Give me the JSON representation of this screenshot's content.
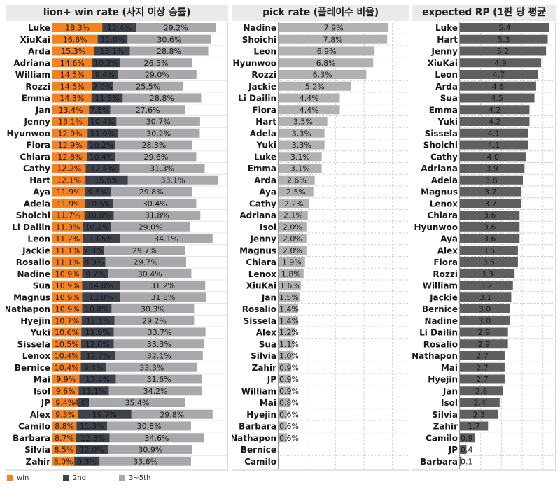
{
  "chart_data": [
    {
      "type": "bar",
      "orientation": "horizontal",
      "stacked": true,
      "title": "lion+ win rate (사지 이상 승률)",
      "categories": [
        "Luke",
        "XiuKai",
        "Arda",
        "Adriana",
        "William",
        "Rozzi",
        "Emma",
        "Jan",
        "Jenny",
        "Hyunwoo",
        "Fiora",
        "Chiara",
        "Cathy",
        "Hart",
        "Aya",
        "Adela",
        "Shoichi",
        "Li Dailin",
        "Leon",
        "Jackie",
        "Rosalio",
        "Nadine",
        "Sua",
        "Magnus",
        "Nathapon",
        "Hyejin",
        "Yuki",
        "Sissela",
        "Lenox",
        "Bernice",
        "Mai",
        "Isol",
        "JP",
        "Alex",
        "Camilo",
        "Barbara",
        "Silvia",
        "Zahir"
      ],
      "series": [
        {
          "name": "win",
          "color": "#f5821f",
          "values": [
            18.3,
            16.6,
            15.3,
            14.6,
            14.5,
            14.5,
            14.3,
            13.4,
            13.1,
            12.9,
            12.9,
            12.8,
            12.2,
            12.1,
            11.9,
            11.9,
            11.7,
            11.3,
            11.2,
            11.1,
            11.1,
            10.9,
            10.9,
            10.9,
            10.9,
            10.7,
            10.6,
            10.5,
            10.4,
            10.4,
            9.9,
            9.6,
            9.4,
            9.3,
            8.8,
            8.7,
            8.5,
            8.0
          ]
        },
        {
          "name": "2nd",
          "color": "#3d414b",
          "values": [
            12.4,
            11.0,
            13.1,
            10.2,
            9.4,
            7.9,
            11.5,
            7.8,
            10.4,
            11.0,
            10.2,
            10.4,
            12.4,
            15.6,
            9.5,
            10.5,
            10.8,
            10.2,
            13.5,
            7.8,
            8.3,
            9.7,
            14.0,
            13.8,
            10.8,
            12.1,
            11.9,
            12.0,
            12.7,
            9.4,
            13.4,
            11.1,
            4.0,
            19.7,
            11.3,
            12.3,
            12.0,
            9.3
          ]
        },
        {
          "name": "3~5th",
          "color": "#a6a8ab",
          "values": [
            29.2,
            30.6,
            28.8,
            26.5,
            29.0,
            25.5,
            28.8,
            27.6,
            30.7,
            30.2,
            28.3,
            29.6,
            31.3,
            33.1,
            29.8,
            30.4,
            31.8,
            29.0,
            34.1,
            29.7,
            29.7,
            30.4,
            31.2,
            31.8,
            30.3,
            29.2,
            33.7,
            33.3,
            32.1,
            33.3,
            31.6,
            34.2,
            35.4,
            29.8,
            30.8,
            34.6,
            30.9,
            33.6
          ]
        }
      ],
      "value_suffix": "%",
      "xlim": [
        0,
        64
      ],
      "grid": false,
      "legend": "bottom-left"
    },
    {
      "type": "bar",
      "orientation": "horizontal",
      "title": "pick rate (플레이수 비율)",
      "color": "#b1b1b1",
      "categories": [
        "Nadine",
        "Shoichi",
        "Leon",
        "Hyunwoo",
        "Rozzi",
        "Jackie",
        "Li Dailin",
        "Fiora",
        "Hart",
        "Adela",
        "Yuki",
        "Luke",
        "Emma",
        "Arda",
        "Aya",
        "Cathy",
        "Adriana",
        "Isol",
        "Jenny",
        "Magnus",
        "Chiara",
        "Lenox",
        "XiuKai",
        "Jan",
        "Rosalio",
        "Sissela",
        "Alex",
        "Sua",
        "Silvia",
        "Zahir",
        "JP",
        "William",
        "Mai",
        "Hyejin",
        "Barbara",
        "Nathapon",
        "Bernice",
        "Camilo"
      ],
      "values": [
        7.9,
        7.8,
        6.9,
        6.8,
        6.3,
        5.2,
        4.4,
        4.4,
        3.5,
        3.3,
        3.3,
        3.1,
        3.1,
        2.6,
        2.5,
        2.2,
        2.1,
        2.0,
        2.0,
        2.0,
        1.9,
        1.8,
        1.6,
        1.5,
        1.4,
        1.4,
        1.2,
        1.1,
        1.0,
        0.9,
        0.9,
        0.9,
        0.8,
        0.6,
        0.6,
        0.6,
        null,
        null
      ],
      "value_suffix": "%",
      "xlim": [
        0,
        9.3
      ],
      "grid": true
    },
    {
      "type": "bar",
      "orientation": "horizontal",
      "title": "expected RP (1판 당 평균 RP)",
      "color": "#5f5f5f",
      "categories": [
        "Luke",
        "Hart",
        "Jenny",
        "XiuKai",
        "Leon",
        "Arda",
        "Sua",
        "Emma",
        "Yuki",
        "Sissela",
        "Shoichi",
        "Cathy",
        "Adriana",
        "Adela",
        "Magnus",
        "Lenox",
        "Chiara",
        "Hyunwoo",
        "Aya",
        "Alex",
        "Fiora",
        "Rozzi",
        "William",
        "Jackie",
        "Bernice",
        "Nadine",
        "Li Dailin",
        "Rosalio",
        "Nathapon",
        "Mai",
        "Hyejin",
        "Jan",
        "Isol",
        "Silvia",
        "Zahir",
        "Camilo",
        "JP",
        "Barbara"
      ],
      "values": [
        5.4,
        5.3,
        5.2,
        4.9,
        4.7,
        4.6,
        4.5,
        4.2,
        4.2,
        4.1,
        4.1,
        4.0,
        3.9,
        3.8,
        3.7,
        3.7,
        3.6,
        3.6,
        3.6,
        3.5,
        3.5,
        3.3,
        3.2,
        3.1,
        3.0,
        3.0,
        2.9,
        2.9,
        2.7,
        2.7,
        2.7,
        2.6,
        2.4,
        2.3,
        1.7,
        0.9,
        0.4,
        0.1
      ],
      "value_suffix": "",
      "xlim": [
        0,
        5.7
      ],
      "grid": true
    }
  ]
}
